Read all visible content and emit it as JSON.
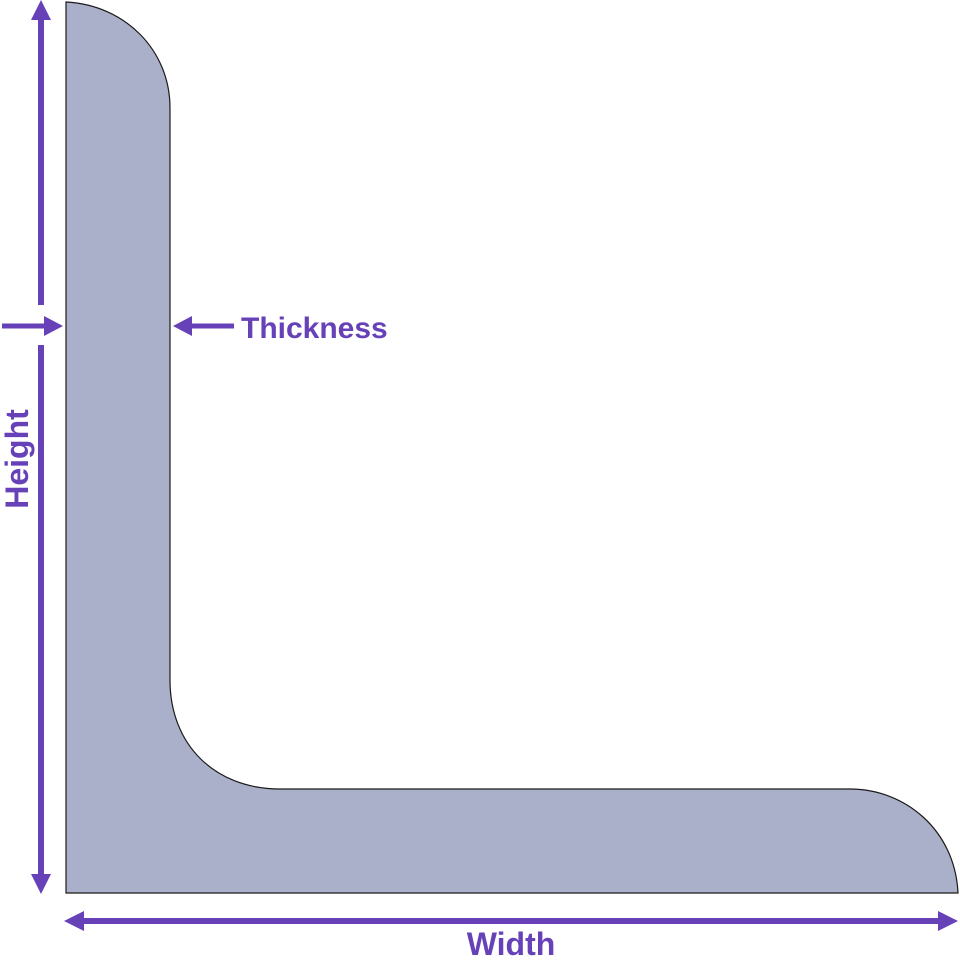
{
  "diagram": {
    "labels": {
      "height": "Height",
      "width": "Width",
      "thickness": "Thickness"
    },
    "colors": {
      "profile_fill": "#aab0c9",
      "profile_stroke": "#1a1a1a",
      "annotation": "#6641b8",
      "background": "#ffffff"
    }
  }
}
